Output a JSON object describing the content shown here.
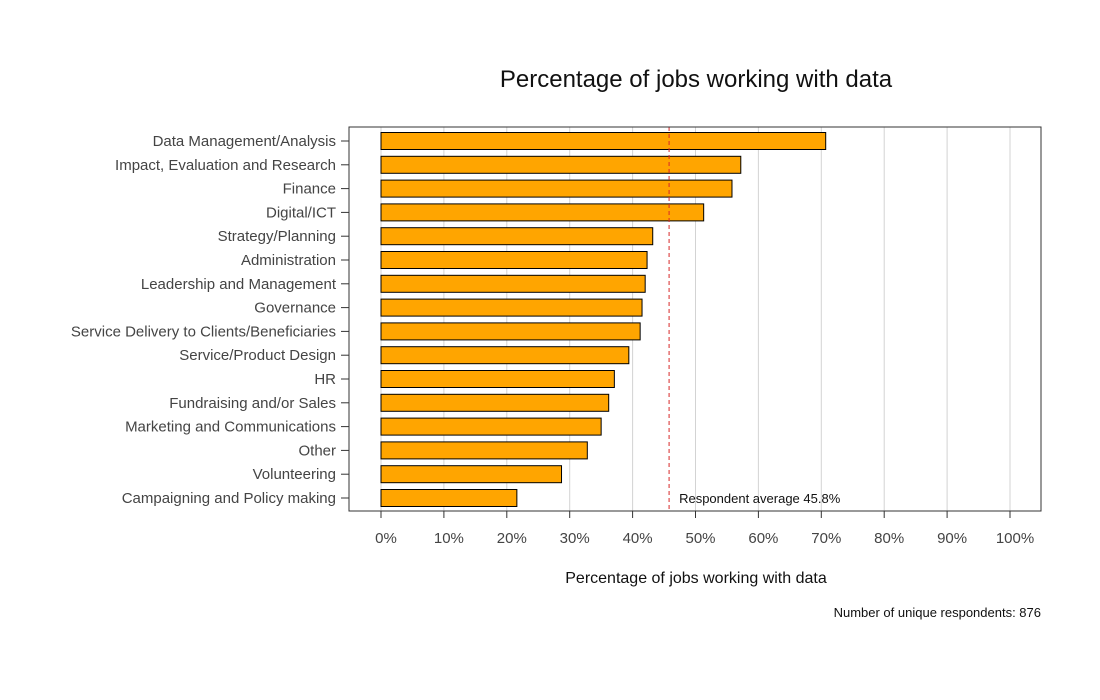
{
  "chart_data": {
    "type": "bar",
    "orientation": "horizontal",
    "title": "Percentage of jobs working with data",
    "xlabel": "Percentage of jobs working with data",
    "ylabel": "",
    "xlim": [
      0,
      100
    ],
    "x_ticks": [
      "0%",
      "10%",
      "20%",
      "30%",
      "40%",
      "50%",
      "60%",
      "70%",
      "80%",
      "90%",
      "100%"
    ],
    "grid": "vertical",
    "categories": [
      "Data Management/Analysis",
      "Impact, Evaluation and Research",
      "Finance",
      "Digital/ICT",
      "Strategy/Planning",
      "Administration",
      "Leadership and Management",
      "Governance",
      "Service Delivery to Clients/Beneficiaries",
      "Service/Product Design",
      "HR",
      "Fundraising and/or Sales",
      "Marketing and Communications",
      "Other",
      "Volunteering",
      "Campaigning and Policy making"
    ],
    "values": [
      70.7,
      57.2,
      55.8,
      51.3,
      43.2,
      42.3,
      42.0,
      41.5,
      41.2,
      39.4,
      37.1,
      36.2,
      35.0,
      32.8,
      28.7,
      21.6
    ],
    "reference_line": {
      "value": 45.8,
      "label": "Respondent average 45.8%",
      "style": "dashed"
    },
    "note": "Number of unique respondents: 876",
    "colors": {
      "bar_fill": "#FFA500",
      "bar_stroke": "#000000",
      "grid": "#d3d3d3",
      "reference_line": "#d62728",
      "frame": "#333333"
    }
  }
}
